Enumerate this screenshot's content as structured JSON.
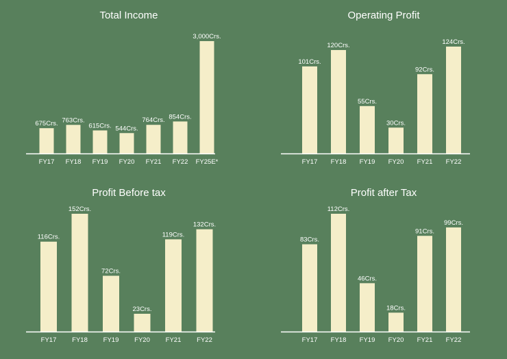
{
  "theme": {
    "background": "#58805c",
    "bar": "#f5eec9",
    "axis": "#ffffff",
    "text": "#ffffff"
  },
  "chart_data": [
    {
      "type": "bar",
      "title": "Total Income",
      "categories": [
        "FY17",
        "FY18",
        "FY19",
        "FY20",
        "FY21",
        "FY22",
        "FY25E*"
      ],
      "values": [
        675,
        763,
        615,
        544,
        764,
        854,
        3000
      ],
      "data_labels": [
        "675Crs.",
        "763Crs.",
        "615Crs.",
        "544Crs.",
        "764Crs.",
        "854Crs.",
        "3,000Crs."
      ],
      "ylim": [
        0,
        3000
      ],
      "grid": false,
      "legend": "none"
    },
    {
      "type": "bar",
      "title": "Operating Profit",
      "categories": [
        "FY17",
        "FY18",
        "FY19",
        "FY20",
        "FY21",
        "FY22"
      ],
      "values": [
        101,
        120,
        55,
        30,
        92,
        124
      ],
      "data_labels": [
        "101Crs.",
        "120Crs.",
        "55Crs.",
        "30Crs.",
        "92Crs.",
        "124Crs."
      ],
      "ylim": [
        0,
        124
      ],
      "grid": false,
      "legend": "none"
    },
    {
      "type": "bar",
      "title": "Profit Before tax",
      "categories": [
        "FY17",
        "FY18",
        "FY19",
        "FY20",
        "FY21",
        "FY22"
      ],
      "values": [
        116,
        152,
        72,
        23,
        119,
        132
      ],
      "data_labels": [
        "116Crs.",
        "152Crs.",
        "72Crs.",
        "23Crs.",
        "119Crs.",
        "132Crs."
      ],
      "ylim": [
        0,
        152
      ],
      "grid": false,
      "legend": "none"
    },
    {
      "type": "bar",
      "title": "Profit after Tax",
      "categories": [
        "FY17",
        "FY18",
        "FY19",
        "FY20",
        "FY21",
        "FY22"
      ],
      "values": [
        83,
        112,
        46,
        18,
        91,
        99
      ],
      "data_labels": [
        "83Crs.",
        "112Crs.",
        "46Crs.",
        "18Crs.",
        "91Crs.",
        "99Crs."
      ],
      "ylim": [
        0,
        112
      ],
      "grid": false,
      "legend": "none"
    }
  ]
}
